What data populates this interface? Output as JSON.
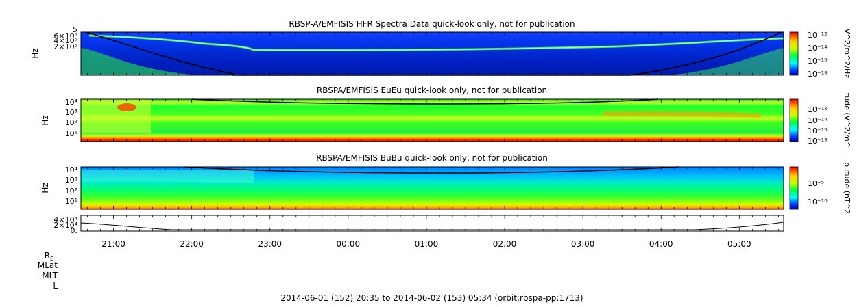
{
  "chart_data": [
    {
      "type": "heatmap",
      "title": "RBSP-A/EMFISIS  HFR Spectra Data quick-look only, not for publication",
      "ylabel": "Hz",
      "yscale": "log",
      "y_ticks": [
        "2×10⁵",
        "4×10⁵",
        "6×10⁵",
        "5"
      ],
      "colorbar_label": "V^2/m^2/Hz",
      "colorbar_ticks": [
        "10⁻¹²",
        "10⁻¹⁴",
        "10⁻¹⁶",
        "10⁻¹⁸"
      ],
      "colorbar_range": [
        1e-18,
        1e-12
      ]
    },
    {
      "type": "heatmap",
      "title": "RBSPA/EMFISIS  EuEu quick-look only, not for publication",
      "ylabel": "Hz",
      "yscale": "log",
      "y_ticks": [
        "10¹",
        "10²",
        "10³",
        "10⁴"
      ],
      "ylim": [
        2,
        20000
      ],
      "colorbar_label": "tude (V^2/m^",
      "colorbar_ticks": [
        "10⁻¹²",
        "10⁻¹⁴",
        "10⁻¹⁶",
        "10⁻¹⁸"
      ],
      "colorbar_range": [
        1e-18,
        1e-12
      ]
    },
    {
      "type": "heatmap",
      "title": "RBSPA/EMFISIS  BuBu quick-look only, not for publication",
      "ylabel": "Hz",
      "yscale": "log",
      "y_ticks": [
        "10¹",
        "10²",
        "10³",
        "10⁴"
      ],
      "ylim": [
        2,
        20000
      ],
      "colorbar_label": "plitude (nT^2",
      "colorbar_ticks": [
        "10⁻⁵",
        "10⁻¹⁰"
      ],
      "colorbar_range": [
        1e-12,
        0.01
      ]
    },
    {
      "type": "line",
      "y_ticks": [
        "0.",
        "2×10⁴",
        "4×10⁴"
      ],
      "ylim": [
        0,
        45000
      ]
    }
  ],
  "time_axis": {
    "ticks": [
      "21:00",
      "22:00",
      "23:00",
      "00:00",
      "01:00",
      "02:00",
      "03:00",
      "04:00",
      "05:00"
    ],
    "range_hours": [
      20.583,
      29.567
    ]
  },
  "ephemeris_labels": [
    "R",
    "MLat",
    "MLT",
    "L"
  ],
  "ephemeris_subscript": "E",
  "footer": "2014-06-01 (152) 20:35 to 2014-06-02 (153) 05:34 (orbit:rbspa-pp:1713)"
}
